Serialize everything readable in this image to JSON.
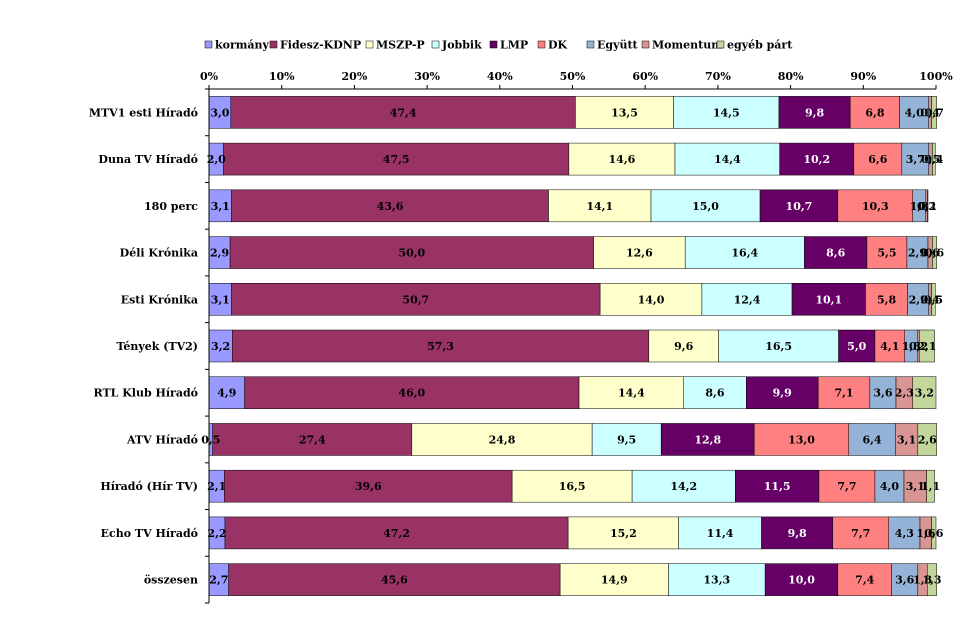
{
  "chart_data": {
    "type": "bar",
    "orientation": "horizontal",
    "stacked": "percent",
    "title": "",
    "xlabel": "",
    "ylabel": "",
    "xlim": [
      0,
      100
    ],
    "x_ticks": [
      "0%",
      "10%",
      "20%",
      "30%",
      "40%",
      "50%",
      "60%",
      "70%",
      "80%",
      "90%",
      "100%"
    ],
    "legend_position": "top",
    "grid": false,
    "categories": [
      "MTV1 esti Híradó",
      "Duna TV Híradó",
      "180 perc",
      "Déli Krónika",
      "Esti Krónika",
      "Tények (TV2)",
      "RTL Klub Híradó",
      "ATV Híradó",
      "Híradó (Hír TV)",
      "Echo TV Híradó",
      "összesen"
    ],
    "series": [
      {
        "name": "kormány",
        "color": "#9999ff",
        "values": [
          3.0,
          2.0,
          3.1,
          2.9,
          3.1,
          3.2,
          4.9,
          0.5,
          2.1,
          2.2,
          2.7
        ],
        "labels": [
          "3,0",
          "2,0",
          "3,1",
          "2,9",
          "3,1",
          "3,2",
          "4,9",
          "0,5",
          "2,1",
          "2,2",
          "2,7"
        ]
      },
      {
        "name": "Fidesz-KDNP",
        "color": "#993366",
        "values": [
          47.4,
          47.5,
          43.6,
          50.0,
          50.7,
          57.3,
          46.0,
          27.4,
          39.6,
          47.2,
          45.6
        ],
        "labels": [
          "47,4",
          "47,5",
          "43,6",
          "50,0",
          "50,7",
          "57,3",
          "46,0",
          "27,4",
          "39,6",
          "47,2",
          "45,6"
        ]
      },
      {
        "name": "MSZP-P",
        "color": "#ffffcc",
        "values": [
          13.5,
          14.6,
          14.1,
          12.6,
          14.0,
          9.6,
          14.4,
          24.8,
          16.5,
          15.2,
          14.9
        ],
        "labels": [
          "13,5",
          "14,6",
          "14,1",
          "12,6",
          "14,0",
          "9,6",
          "14,4",
          "24,8",
          "16,5",
          "15,2",
          "14,9"
        ]
      },
      {
        "name": "Jobbik",
        "color": "#ccffff",
        "values": [
          14.5,
          14.4,
          15.0,
          16.4,
          12.4,
          16.5,
          8.6,
          9.5,
          14.2,
          11.4,
          13.3
        ],
        "labels": [
          "14,5",
          "14,4",
          "15,0",
          "16,4",
          "12,4",
          "16,5",
          "8,6",
          "9,5",
          "14,2",
          "11,4",
          "13,3"
        ]
      },
      {
        "name": "LMP",
        "color": "#660066",
        "values": [
          9.8,
          10.2,
          10.7,
          8.6,
          10.1,
          5.0,
          9.9,
          12.8,
          11.5,
          9.8,
          10.0
        ],
        "labels": [
          "9,8",
          "10,2",
          "10,7",
          "8,6",
          "10,1",
          "5,0",
          "9,9",
          "12,8",
          "11,5",
          "9,8",
          "10,0"
        ]
      },
      {
        "name": "DK",
        "color": "#ff8080",
        "values": [
          6.8,
          6.6,
          10.3,
          5.5,
          5.8,
          4.1,
          7.1,
          13.0,
          7.7,
          7.7,
          7.4
        ],
        "labels": [
          "6,8",
          "6,6",
          "10,3",
          "5,5",
          "5,8",
          "4,1",
          "7,1",
          "13,0",
          "7,7",
          "7,7",
          "7,4"
        ]
      },
      {
        "name": "Együtt",
        "color": "#95b3d7",
        "values": [
          4.0,
          3.7,
          1.8,
          2.9,
          2.9,
          1.8,
          3.6,
          6.4,
          4.0,
          4.3,
          3.6
        ],
        "labels": [
          "4,0",
          "3,7",
          "1,8",
          "2,9",
          "2,9",
          "1,8",
          "3,6",
          "6,4",
          "4,0",
          "4,3",
          "3,6"
        ]
      },
      {
        "name": "Momentum",
        "color": "#d99594",
        "values": [
          0.4,
          0.5,
          0.2,
          0.6,
          0.4,
          0.2,
          2.3,
          3.1,
          3.1,
          1.6,
          1.3
        ],
        "labels": [
          "0,4",
          "0,5",
          "0,2",
          "0,6",
          "0,4",
          "0,2",
          "2,3",
          "3,1",
          "3,1",
          "1,6",
          "1,3"
        ]
      },
      {
        "name": "egyéb párt",
        "color": "#c3d69b",
        "values": [
          0.7,
          0.4,
          0.1,
          0.6,
          0.5,
          2.1,
          3.2,
          2.6,
          1.1,
          0.6,
          1.3
        ],
        "labels": [
          "0,7",
          "0,4",
          "0,1",
          "0,6",
          "0,5",
          "2,1",
          "3,2",
          "2,6",
          "1,1",
          "0,6",
          "1,3"
        ]
      }
    ],
    "label_colors": [
      "#000000",
      "#000000",
      "#000000",
      "#000000",
      "#ffffff",
      "#000000",
      "#000000",
      "#000000",
      "#000000"
    ]
  }
}
